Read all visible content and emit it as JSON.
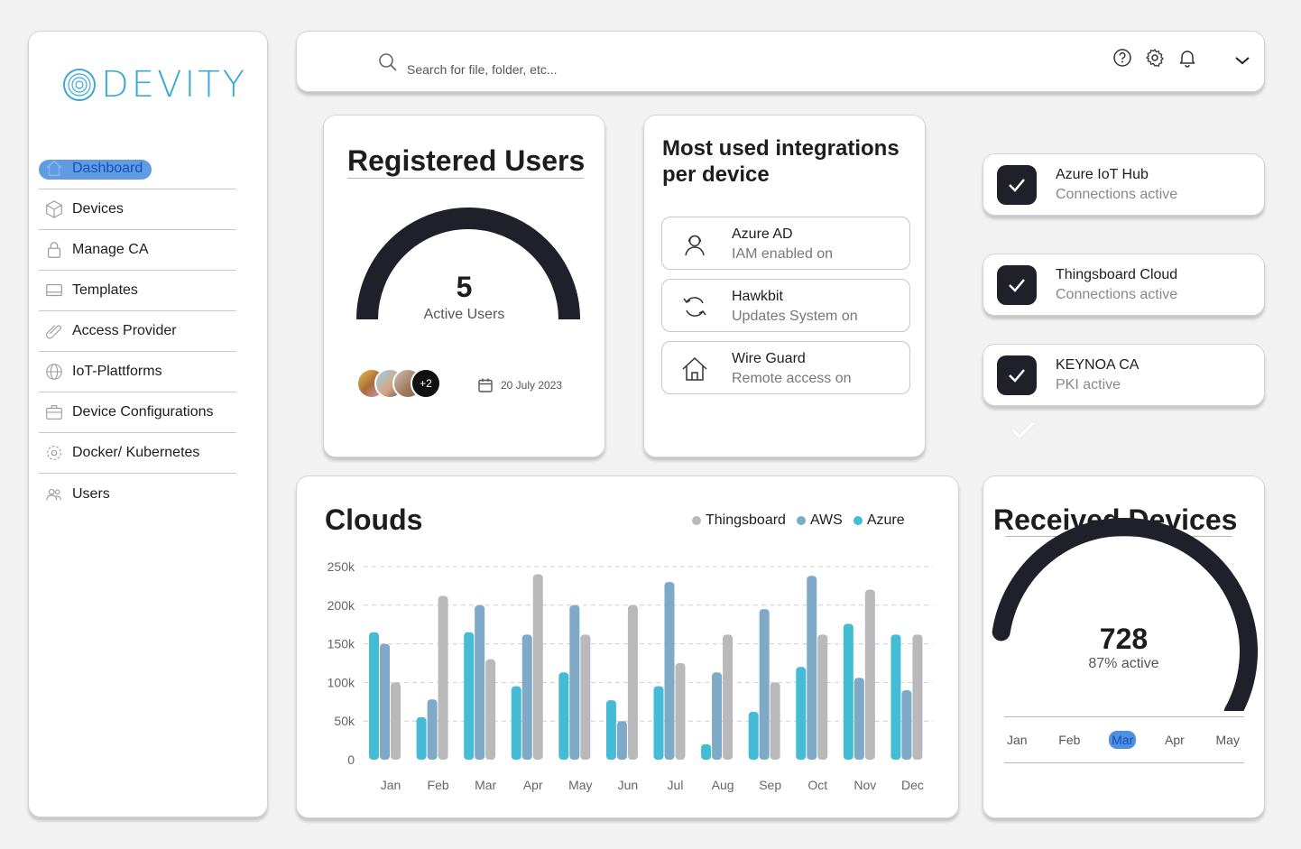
{
  "brand": {
    "name": "DEVITY",
    "color": "#3aa9d6"
  },
  "sidebar": {
    "items": [
      {
        "label": "Dashboard",
        "icon": "home-icon",
        "active": true
      },
      {
        "label": "Devices",
        "icon": "cube-icon"
      },
      {
        "label": "Manage CA",
        "icon": "lock-icon"
      },
      {
        "label": "Templates",
        "icon": "laptop-icon"
      },
      {
        "label": "Access Provider",
        "icon": "paperclip-icon"
      },
      {
        "label": "IoT-Plattforms",
        "icon": "globe-icon"
      },
      {
        "label": "Device Configurations",
        "icon": "briefcase-icon"
      },
      {
        "label": "Docker/ Kubernetes",
        "icon": "gear-icon"
      },
      {
        "label": "Users",
        "icon": "users-icon"
      }
    ]
  },
  "topbar": {
    "search_placeholder": "Search for file, folder, etc...",
    "icons": [
      "help-icon",
      "settings-icon",
      "bell-icon",
      "chevron-down-icon"
    ]
  },
  "registered_users": {
    "title": "Registered Users",
    "value": "5",
    "label": "Active Users",
    "avatars_more": "+2",
    "date": "20 July 2023"
  },
  "integrations": {
    "title": "Most used integrations per device",
    "items": [
      {
        "name": "Azure AD",
        "status": "IAM enabled on",
        "icon": "user-headset-icon"
      },
      {
        "name": "Hawkbit",
        "status": "Updates System on",
        "icon": "refresh-icon"
      },
      {
        "name": "Wire Guard",
        "status": "Remote access on",
        "icon": "house-icon"
      }
    ]
  },
  "connections": [
    {
      "name": "Azure IoT Hub",
      "status": "Connections active"
    },
    {
      "name": "Thingsboard Cloud",
      "status": "Connections active"
    },
    {
      "name": "KEYNOA CA",
      "status": "PKI active"
    }
  ],
  "chart_data": {
    "type": "bar",
    "title": "Clouds",
    "categories": [
      "Jan",
      "Feb",
      "Mar",
      "Apr",
      "May",
      "Jun",
      "Jul",
      "Aug",
      "Sep",
      "Oct",
      "Nov",
      "Dec"
    ],
    "series": [
      {
        "name": "Azure",
        "color": "#45bcd6",
        "values": [
          165000,
          55000,
          165000,
          95000,
          113000,
          77000,
          95000,
          20000,
          62000,
          120000,
          176000,
          162000
        ]
      },
      {
        "name": "AWS",
        "color": "#7eaac8",
        "values": [
          150000,
          78000,
          200000,
          162000,
          200000,
          50000,
          230000,
          113000,
          195000,
          238000,
          106000,
          90000
        ]
      },
      {
        "name": "Thingsboard",
        "color": "#b9b9bb",
        "values": [
          100000,
          212000,
          130000,
          240000,
          162000,
          200000,
          125000,
          162000,
          100000,
          162000,
          220000,
          162000
        ]
      }
    ],
    "legend": [
      "Thingsboard",
      "AWS",
      "Azure"
    ],
    "legend_colors": [
      "#b9b9bb",
      "#7eaac8",
      "#45bcd6"
    ],
    "yticks": [
      "0",
      "50k",
      "100k",
      "150k",
      "200k",
      "250k"
    ],
    "ylim": [
      0,
      250000
    ],
    "grid": true,
    "legend_position": "top-right"
  },
  "received_devices": {
    "title": "Received Devices",
    "value": "728",
    "label": "87% active",
    "progress": 0.87,
    "months": [
      "Jan",
      "Feb",
      "Mar",
      "Apr",
      "May"
    ],
    "active_month": "Mar"
  }
}
